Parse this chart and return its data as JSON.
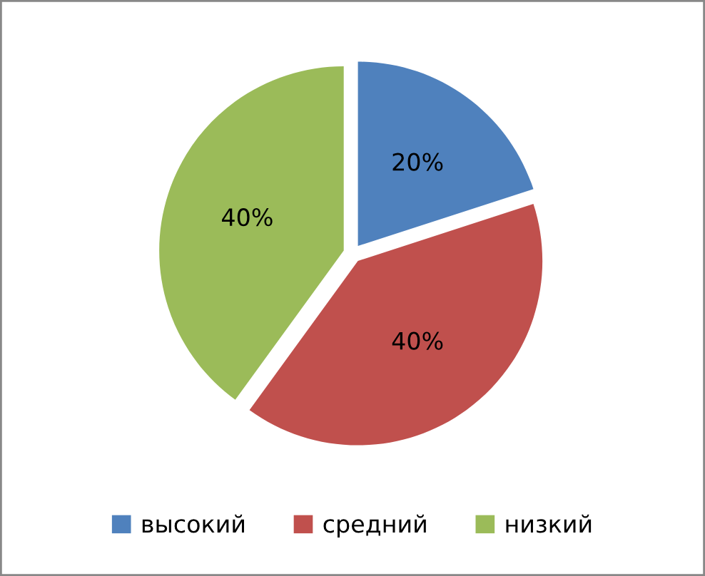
{
  "chart_data": {
    "type": "pie",
    "categories": [
      "высокий",
      "средний",
      "низкий"
    ],
    "values": [
      20,
      40,
      40
    ],
    "colors": [
      "#4f81bd",
      "#c0504d",
      "#9bbb59"
    ],
    "value_labels": [
      "20%",
      "40%",
      "40%"
    ],
    "legend": "bottom"
  }
}
